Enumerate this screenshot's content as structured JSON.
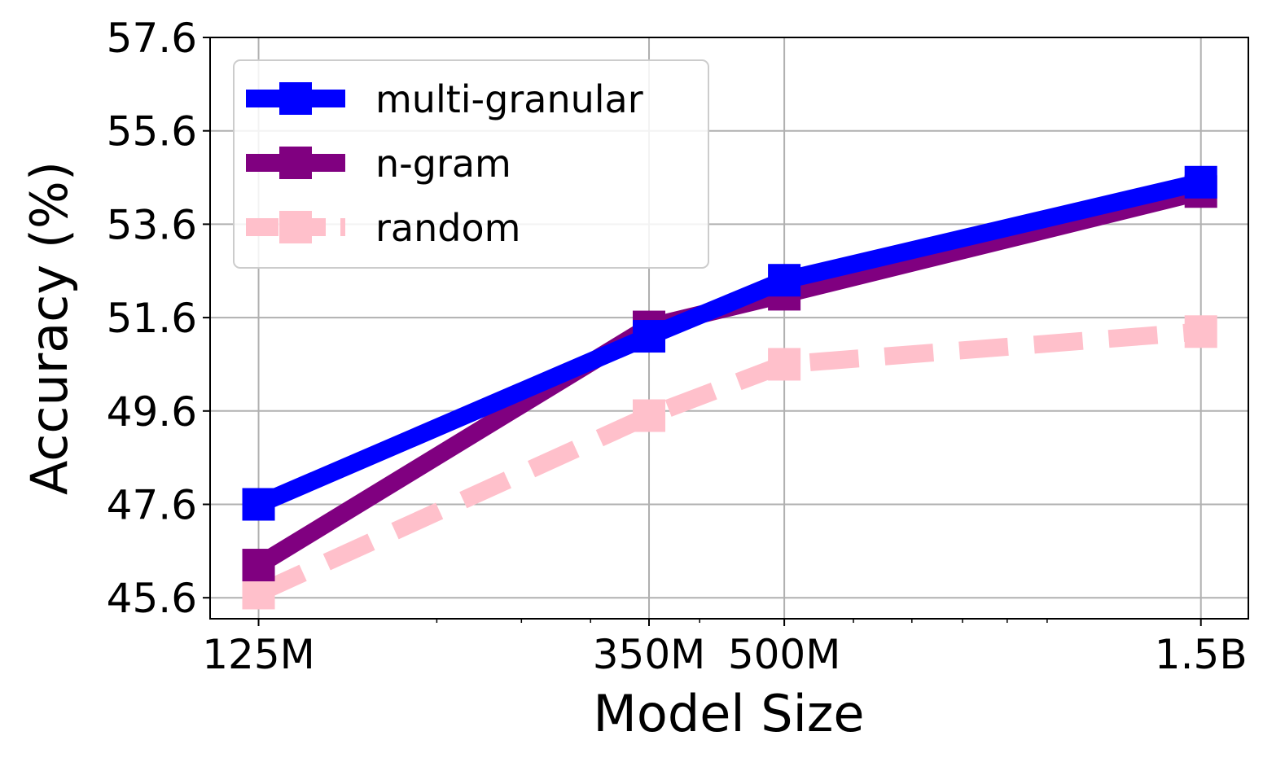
{
  "chart_data": {
    "type": "line",
    "xlabel": "Model Size",
    "ylabel": "Accuracy (%)",
    "x_scale": "log",
    "categories": [
      "125M",
      "350M",
      "500M",
      "1.5B"
    ],
    "x": [
      125000000,
      350000000,
      500000000,
      1500000000
    ],
    "xlim": [
      110000000,
      1700000000
    ],
    "ylim": [
      45.15,
      57.6
    ],
    "yticks": [
      45.6,
      47.6,
      49.6,
      51.6,
      53.6,
      55.6,
      57.6
    ],
    "ytick_labels": [
      "45.6",
      "47.6",
      "49.6",
      "51.6",
      "53.6",
      "55.6",
      "57.6"
    ],
    "minor_xticks": [
      200000000,
      250000000,
      300000000,
      400000000,
      600000000,
      700000000,
      800000000,
      900000000,
      1000000000
    ],
    "grid": true,
    "legend_position": "top-left",
    "series": [
      {
        "name": "multi-granular",
        "values": [
          47.6,
          51.2,
          52.4,
          54.5
        ],
        "color": "#0000ff",
        "dash": "solid",
        "marker": "square"
      },
      {
        "name": "n-gram",
        "values": [
          46.3,
          51.4,
          52.1,
          54.3
        ],
        "color": "#800080",
        "dash": "solid",
        "marker": "square"
      },
      {
        "name": "random",
        "values": [
          45.7,
          49.5,
          50.6,
          51.3
        ],
        "color": "#ffc0cb",
        "dash": "dashed",
        "marker": "square"
      }
    ]
  }
}
